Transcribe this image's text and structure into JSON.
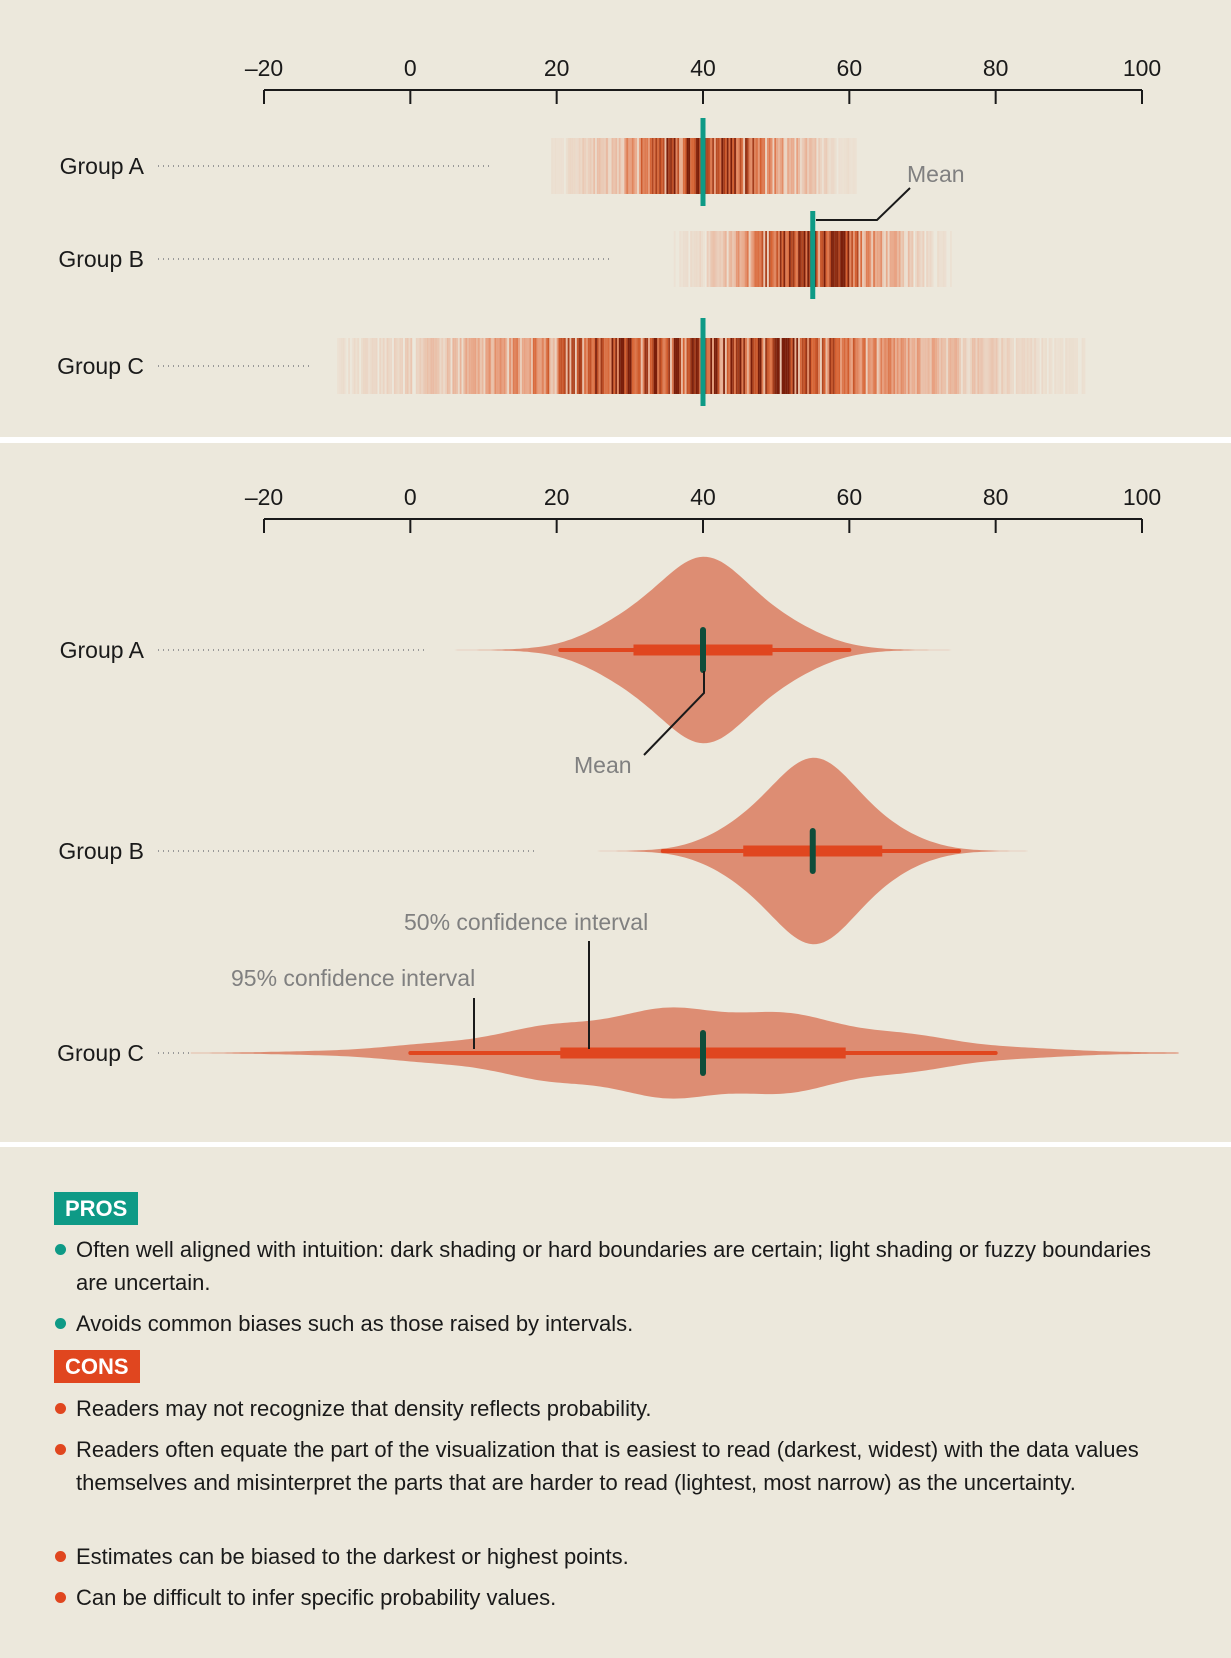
{
  "theme": {
    "panel_bg": "#ece8dc",
    "accent_teal": "#0e9a86",
    "accent_orange": "#e0461f",
    "violin_fill": "#dd8d73",
    "annotation_gray": "#808080"
  },
  "chart_data": [
    {
      "type": "gradient-strip",
      "axis": {
        "ticks": [
          -20,
          0,
          20,
          40,
          60,
          80,
          100
        ],
        "tick_labels": [
          "–20",
          "0",
          "20",
          "40",
          "60",
          "80",
          "100"
        ],
        "xlim": [
          -20,
          100
        ]
      },
      "groups": [
        {
          "label": "Group A",
          "mean": 40,
          "sd": 8,
          "range": [
            15,
            63
          ]
        },
        {
          "label": "Group B",
          "mean": 55,
          "sd": 7,
          "range": [
            31,
            77
          ]
        },
        {
          "label": "Group C",
          "mean": 40,
          "sd": 20,
          "range": [
            -10,
            92
          ]
        }
      ],
      "annotations": {
        "mean_label": "Mean"
      }
    },
    {
      "type": "violin",
      "axis": {
        "ticks": [
          -20,
          0,
          20,
          40,
          60,
          80,
          100
        ],
        "tick_labels": [
          "–20",
          "0",
          "20",
          "40",
          "60",
          "80",
          "100"
        ],
        "xlim": [
          -20,
          100
        ]
      },
      "groups": [
        {
          "label": "Group A",
          "mean": 40,
          "sd": 8,
          "range": [
            5,
            75
          ],
          "ci50": [
            30.5,
            49.5
          ],
          "ci95": [
            20.5,
            60
          ]
        },
        {
          "label": "Group B",
          "mean": 55,
          "sd": 7,
          "range": [
            20,
            92
          ],
          "ci50": [
            45.5,
            64.5
          ],
          "ci95": [
            34.5,
            75
          ]
        },
        {
          "label": "Group C",
          "mean": 40,
          "sd": 20,
          "range": [
            -30,
            105
          ],
          "ci50": [
            20.5,
            59.5
          ],
          "ci95": [
            0,
            80
          ]
        }
      ],
      "annotations": {
        "mean_label": "Mean",
        "ci50_label": "50% confidence interval",
        "ci95_label": "95% confidence interval"
      }
    }
  ],
  "pros": {
    "tag": "PROS",
    "items": [
      "Often well aligned with intuition: dark shading or hard boundaries are certain; light shading or fuzzy boundaries are uncertain.",
      "Avoids common biases such as those raised by intervals."
    ]
  },
  "cons": {
    "tag": "CONS",
    "items": [
      "Readers may not recognize that density reflects probability.",
      "Readers often equate the part of the visualization that is easiest to read (darkest, widest) with the data values themselves and misinterpret the parts that are harder to read (lightest, most narrow) as the uncertainty.",
      "Estimates can be biased to the darkest or highest points.",
      "Can be difficult to infer specific probability values."
    ]
  }
}
